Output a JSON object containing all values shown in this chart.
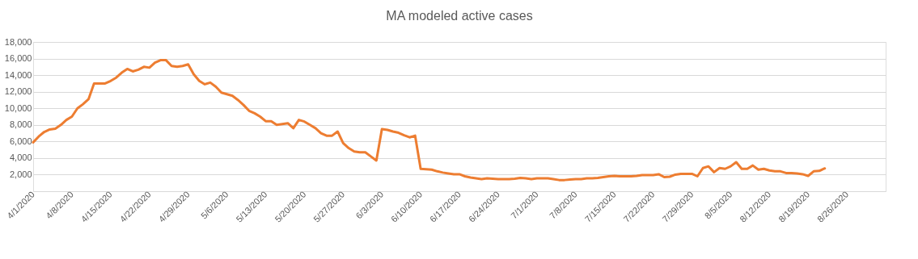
{
  "chart_data": {
    "type": "line",
    "title": "MA modeled active cases",
    "x": [
      "2020-04-01",
      "2020-04-02",
      "2020-04-03",
      "2020-04-04",
      "2020-04-05",
      "2020-04-06",
      "2020-04-07",
      "2020-04-08",
      "2020-04-09",
      "2020-04-10",
      "2020-04-11",
      "2020-04-12",
      "2020-04-13",
      "2020-04-14",
      "2020-04-15",
      "2020-04-16",
      "2020-04-17",
      "2020-04-18",
      "2020-04-19",
      "2020-04-20",
      "2020-04-21",
      "2020-04-22",
      "2020-04-23",
      "2020-04-24",
      "2020-04-25",
      "2020-04-26",
      "2020-04-27",
      "2020-04-28",
      "2020-04-29",
      "2020-04-30",
      "2020-05-01",
      "2020-05-02",
      "2020-05-03",
      "2020-05-04",
      "2020-05-05",
      "2020-05-06",
      "2020-05-07",
      "2020-05-08",
      "2020-05-09",
      "2020-05-10",
      "2020-05-11",
      "2020-05-12",
      "2020-05-13",
      "2020-05-14",
      "2020-05-15",
      "2020-05-16",
      "2020-05-17",
      "2020-05-18",
      "2020-05-19",
      "2020-05-20",
      "2020-05-21",
      "2020-05-22",
      "2020-05-23",
      "2020-05-24",
      "2020-05-25",
      "2020-05-26",
      "2020-05-27",
      "2020-05-28",
      "2020-05-29",
      "2020-05-30",
      "2020-05-31",
      "2020-06-01",
      "2020-06-02",
      "2020-06-03",
      "2020-06-04",
      "2020-06-05",
      "2020-06-06",
      "2020-06-07",
      "2020-06-08",
      "2020-06-09",
      "2020-06-10",
      "2020-06-11",
      "2020-06-12",
      "2020-06-13",
      "2020-06-14",
      "2020-06-15",
      "2020-06-16",
      "2020-06-17",
      "2020-06-18",
      "2020-06-19",
      "2020-06-20",
      "2020-06-21",
      "2020-06-22",
      "2020-06-23",
      "2020-06-24",
      "2020-06-25",
      "2020-06-26",
      "2020-06-27",
      "2020-06-28",
      "2020-06-29",
      "2020-06-30",
      "2020-07-01",
      "2020-07-02",
      "2020-07-03",
      "2020-07-04",
      "2020-07-05",
      "2020-07-06",
      "2020-07-07",
      "2020-07-08",
      "2020-07-09",
      "2020-07-10",
      "2020-07-11",
      "2020-07-12",
      "2020-07-13",
      "2020-07-14",
      "2020-07-15",
      "2020-07-16",
      "2020-07-17",
      "2020-07-18",
      "2020-07-19",
      "2020-07-20",
      "2020-07-21",
      "2020-07-22",
      "2020-07-23",
      "2020-07-24",
      "2020-07-25",
      "2020-07-26",
      "2020-07-27",
      "2020-07-28",
      "2020-07-29",
      "2020-07-30",
      "2020-07-31",
      "2020-08-01",
      "2020-08-02",
      "2020-08-03",
      "2020-08-04",
      "2020-08-05",
      "2020-08-06",
      "2020-08-07",
      "2020-08-08",
      "2020-08-09",
      "2020-08-10",
      "2020-08-11",
      "2020-08-12",
      "2020-08-13",
      "2020-08-14",
      "2020-08-15",
      "2020-08-16",
      "2020-08-17",
      "2020-08-18",
      "2020-08-19",
      "2020-08-20",
      "2020-08-21",
      "2020-08-22"
    ],
    "series": [
      {
        "color": "#ed7d31",
        "values": [
          5900,
          6600,
          7150,
          7450,
          7550,
          8000,
          8600,
          9000,
          10000,
          10500,
          11100,
          13000,
          13000,
          13000,
          13300,
          13700,
          14300,
          14750,
          14450,
          14650,
          15000,
          14900,
          15500,
          15800,
          15800,
          15100,
          15000,
          15100,
          15300,
          14100,
          13300,
          12900,
          13100,
          12600,
          11900,
          11700,
          11500,
          11000,
          10400,
          9700,
          9400,
          9000,
          8450,
          8450,
          8000,
          8100,
          8200,
          7600,
          8600,
          8400,
          8000,
          7600,
          7000,
          6700,
          6700,
          7200,
          5800,
          5200,
          4800,
          4700,
          4700,
          4200,
          3700,
          7500,
          7400,
          7200,
          7050,
          6750,
          6500,
          6700,
          2700,
          2650,
          2600,
          2400,
          2250,
          2150,
          2050,
          2050,
          1800,
          1650,
          1550,
          1450,
          1550,
          1500,
          1450,
          1450,
          1450,
          1500,
          1600,
          1550,
          1450,
          1550,
          1550,
          1550,
          1450,
          1350,
          1350,
          1400,
          1450,
          1450,
          1550,
          1550,
          1600,
          1700,
          1800,
          1850,
          1800,
          1800,
          1800,
          1850,
          1950,
          1950,
          1950,
          2050,
          1700,
          1750,
          2000,
          2100,
          2100,
          2100,
          1800,
          2800,
          3000,
          2300,
          2800,
          2700,
          3000,
          3500,
          2700,
          2700,
          3100,
          2600,
          2700,
          2500,
          2400,
          2400,
          2200,
          2200,
          2150,
          2050,
          1850,
          2400,
          2450,
          2750
        ]
      }
    ],
    "xlim": [
      "2020-04-01",
      "2020-09-02"
    ],
    "xticks": [
      {
        "value": "2020-04-01",
        "label": "4/1/2020"
      },
      {
        "value": "2020-04-08",
        "label": "4/8/2020"
      },
      {
        "value": "2020-04-15",
        "label": "4/15/2020"
      },
      {
        "value": "2020-04-22",
        "label": "4/22/2020"
      },
      {
        "value": "2020-04-29",
        "label": "4/29/2020"
      },
      {
        "value": "2020-05-06",
        "label": "5/6/2020"
      },
      {
        "value": "2020-05-13",
        "label": "5/13/2020"
      },
      {
        "value": "2020-05-20",
        "label": "5/20/2020"
      },
      {
        "value": "2020-05-27",
        "label": "5/27/2020"
      },
      {
        "value": "2020-06-03",
        "label": "6/3/2020"
      },
      {
        "value": "2020-06-10",
        "label": "6/10/2020"
      },
      {
        "value": "2020-06-17",
        "label": "6/17/2020"
      },
      {
        "value": "2020-06-24",
        "label": "6/24/2020"
      },
      {
        "value": "2020-07-01",
        "label": "7/1/2020"
      },
      {
        "value": "2020-07-08",
        "label": "7/8/2020"
      },
      {
        "value": "2020-07-15",
        "label": "7/15/2020"
      },
      {
        "value": "2020-07-22",
        "label": "7/22/2020"
      },
      {
        "value": "2020-07-29",
        "label": "7/29/2020"
      },
      {
        "value": "2020-08-05",
        "label": "8/5/2020"
      },
      {
        "value": "2020-08-12",
        "label": "8/12/2020"
      },
      {
        "value": "2020-08-19",
        "label": "8/19/2020"
      },
      {
        "value": "2020-08-26",
        "label": "8/26/2020"
      }
    ],
    "ylim": [
      0,
      18000
    ],
    "yticks": [
      {
        "value": 0,
        "label": "-"
      },
      {
        "value": 2000,
        "label": "2,000"
      },
      {
        "value": 4000,
        "label": "4,000"
      },
      {
        "value": 6000,
        "label": "6,000"
      },
      {
        "value": 8000,
        "label": "8,000"
      },
      {
        "value": 10000,
        "label": "10,000"
      },
      {
        "value": 12000,
        "label": "12,000"
      },
      {
        "value": 14000,
        "label": "14,000"
      },
      {
        "value": 16000,
        "label": "16,000"
      },
      {
        "value": 18000,
        "label": "18,000"
      }
    ],
    "grid": "y",
    "marker": "none",
    "line_style": "solid"
  }
}
